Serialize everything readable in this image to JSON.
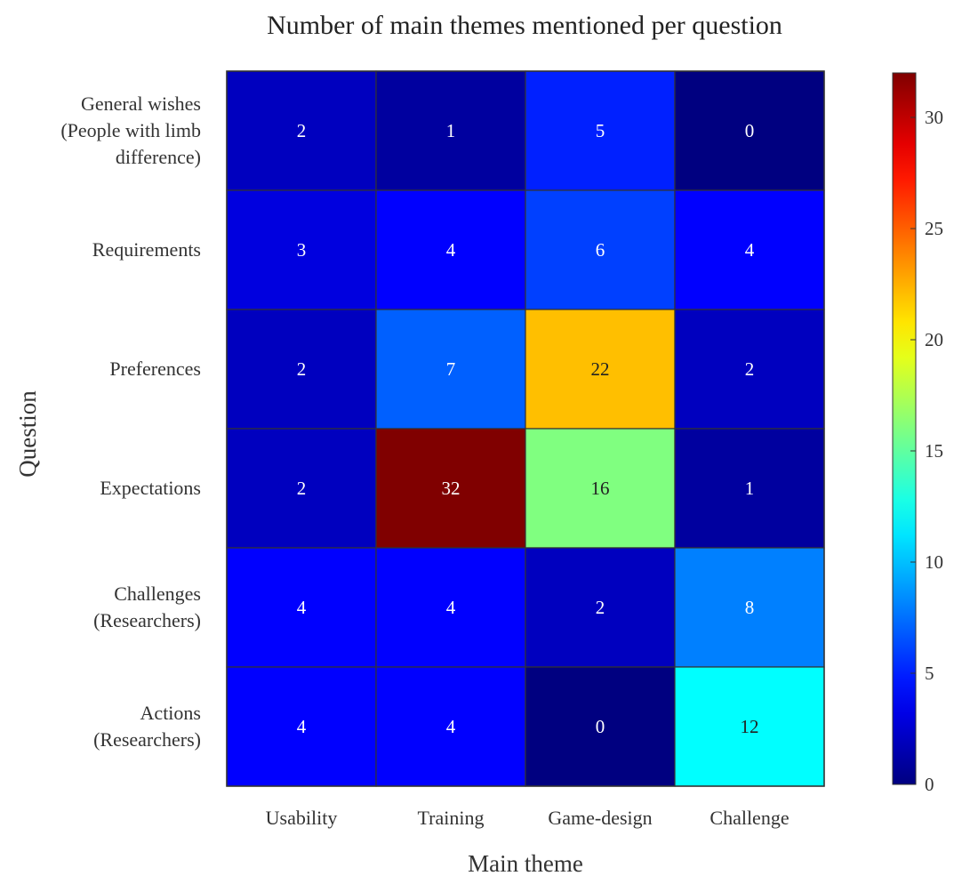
{
  "chart_data": {
    "type": "heatmap",
    "title": "Number of main themes mentioned per question",
    "xlabel": "Main theme",
    "ylabel": "Question",
    "x_categories": [
      "Usability",
      "Training",
      "Game-design",
      "Challenge"
    ],
    "y_categories": [
      [
        "General wishes",
        "(People with limb",
        "difference)"
      ],
      [
        "Requirements"
      ],
      [
        "Preferences"
      ],
      [
        "Expectations"
      ],
      [
        "Challenges",
        "(Researchers)"
      ],
      [
        "Actions",
        "(Researchers)"
      ]
    ],
    "values": [
      [
        2,
        1,
        5,
        0
      ],
      [
        3,
        4,
        6,
        4
      ],
      [
        2,
        7,
        22,
        2
      ],
      [
        2,
        32,
        16,
        1
      ],
      [
        4,
        4,
        2,
        8
      ],
      [
        4,
        4,
        0,
        12
      ]
    ],
    "colormap": "jet",
    "clim": [
      0,
      32
    ],
    "colorbar_ticks": [
      0,
      5,
      10,
      15,
      20,
      25,
      30
    ],
    "grid": true,
    "colorbar": "right"
  }
}
